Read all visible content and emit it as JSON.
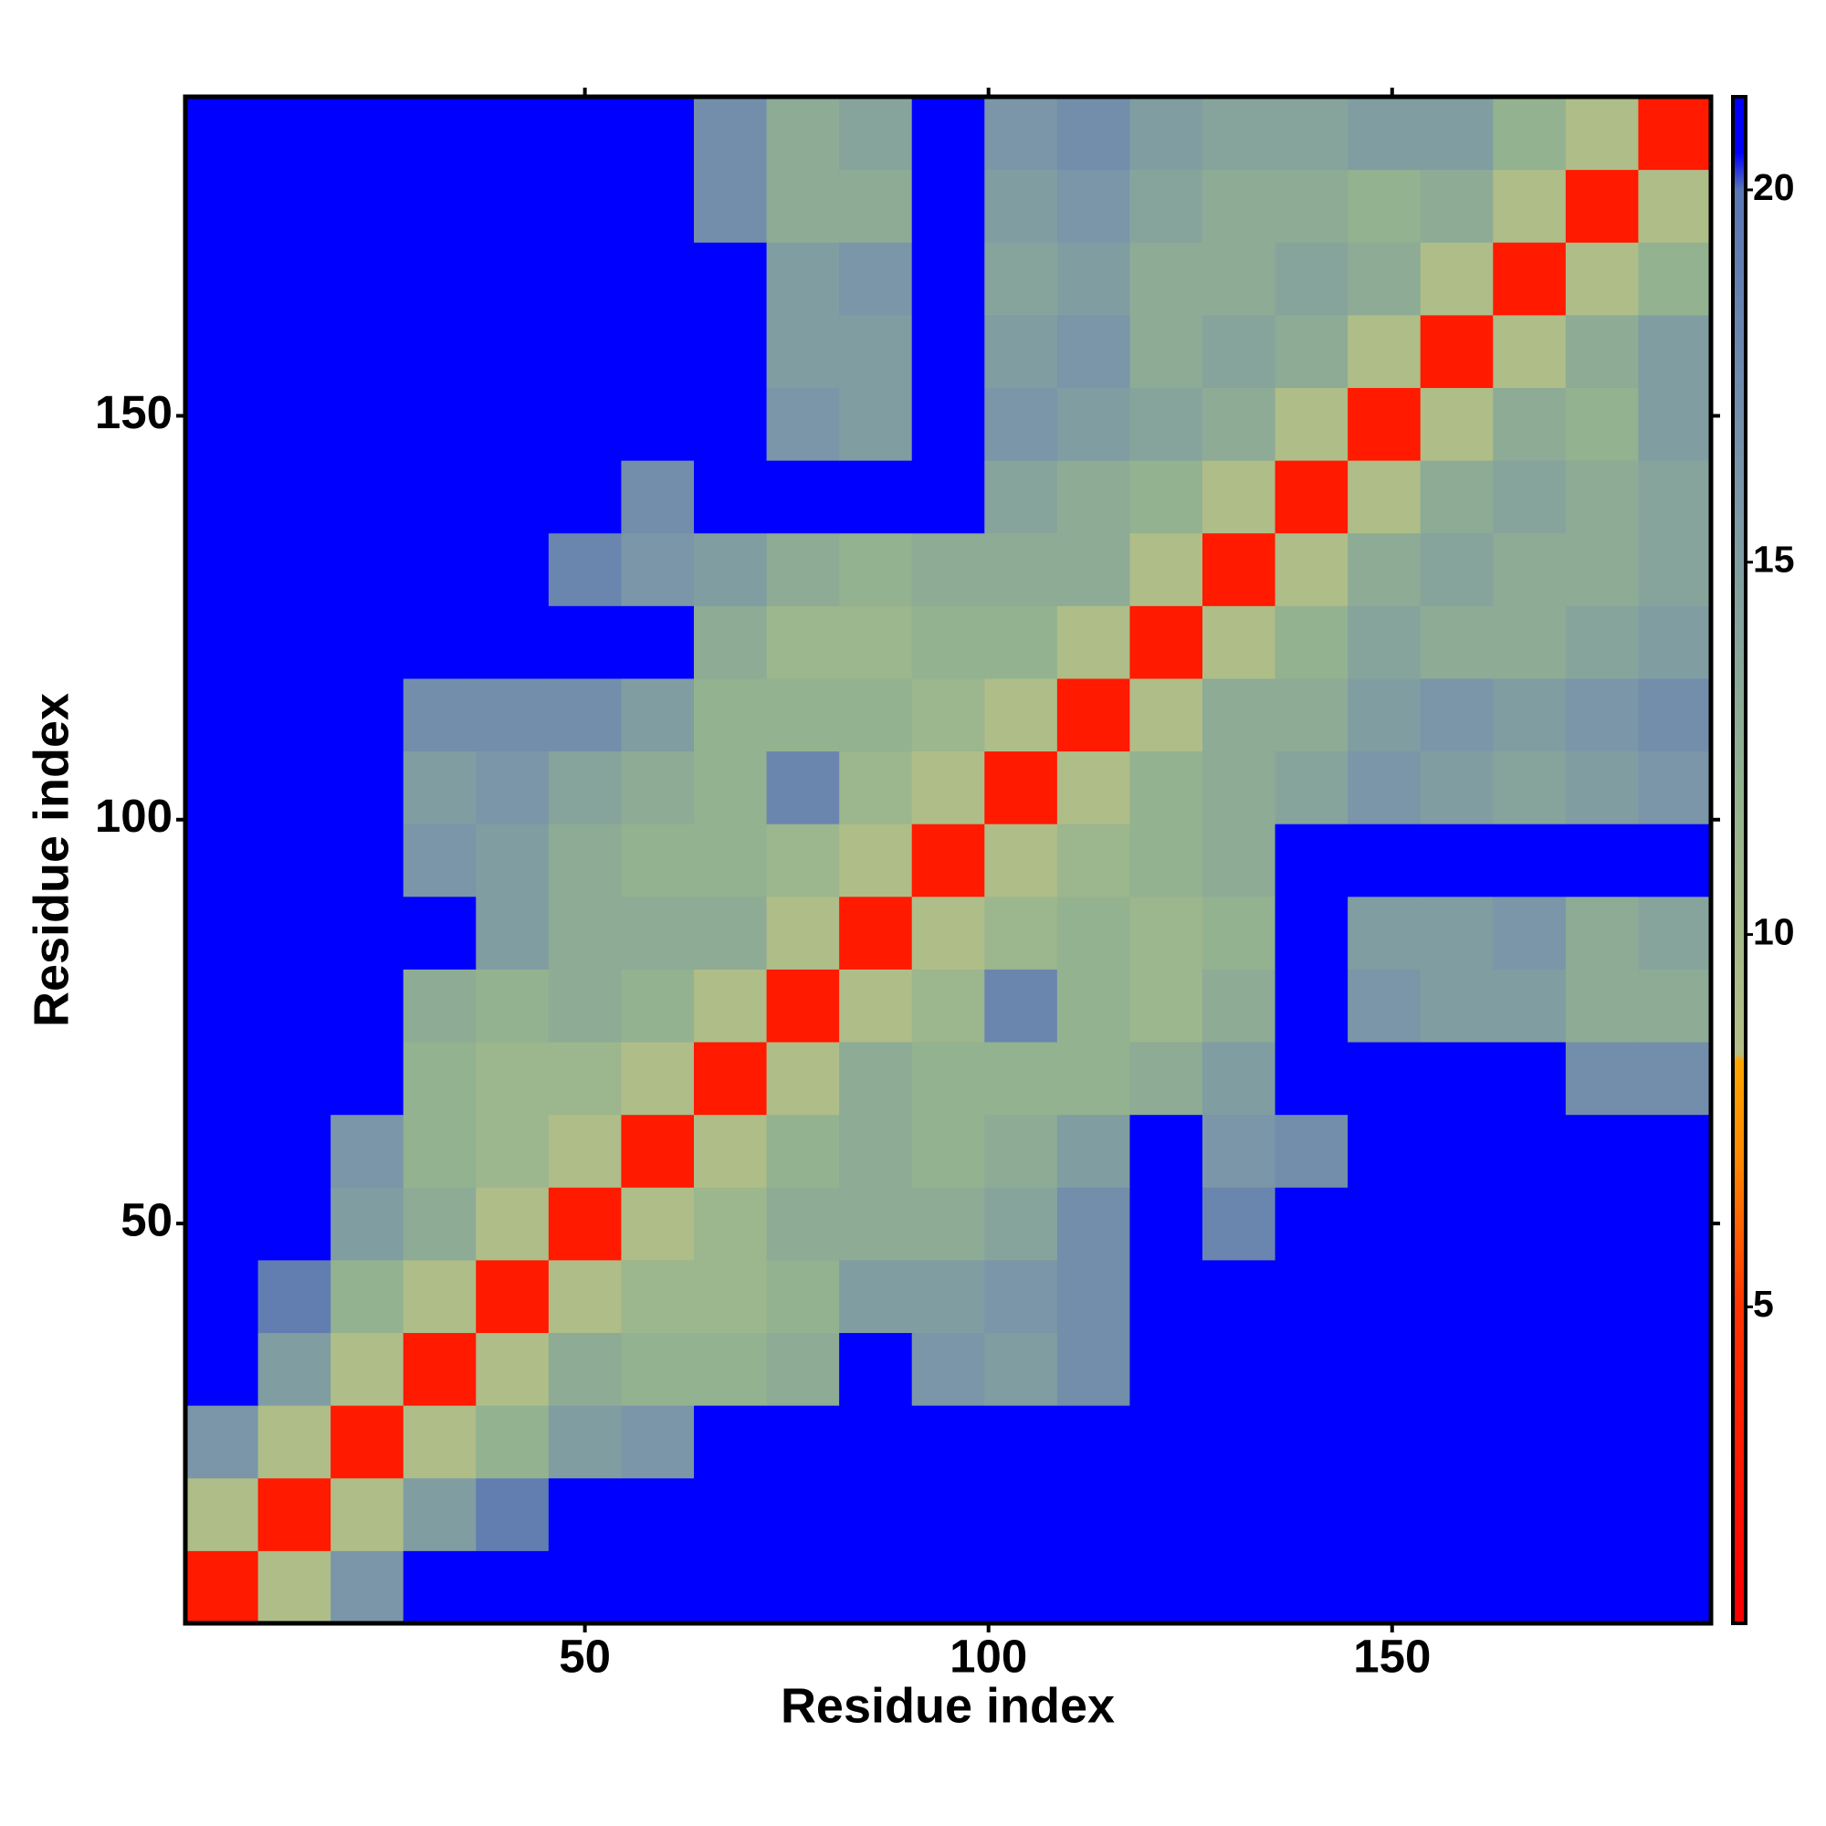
{
  "chart_data": {
    "type": "heatmap",
    "xlabel": "Residue index",
    "ylabel": "Residue index",
    "xlim": [
      0.5,
      189.5
    ],
    "ylim": [
      0.5,
      189.5
    ],
    "xticks": [
      50,
      100,
      150
    ],
    "yticks": [
      50,
      100,
      150
    ],
    "x": [
      5,
      14,
      23,
      32,
      41,
      50,
      59,
      68,
      77,
      86,
      95,
      104,
      113,
      122,
      131,
      140,
      149,
      158,
      167,
      176,
      185
    ],
    "y": [
      5,
      14,
      23,
      32,
      41,
      50,
      59,
      68,
      77,
      86,
      95,
      104,
      113,
      122,
      131,
      140,
      149,
      158,
      167,
      176,
      185
    ],
    "values": [
      [
        3,
        9,
        16,
        21,
        21,
        21,
        21,
        21,
        21,
        21,
        21,
        21,
        21,
        21,
        21,
        21,
        21,
        21,
        21,
        21,
        21
      ],
      [
        9,
        3,
        9,
        15,
        19,
        21,
        21,
        21,
        21,
        21,
        21,
        21,
        21,
        21,
        21,
        21,
        21,
        21,
        21,
        21,
        21
      ],
      [
        16,
        9,
        3,
        9,
        12,
        15,
        16,
        21,
        21,
        21,
        21,
        21,
        21,
        21,
        21,
        21,
        21,
        21,
        21,
        21,
        21
      ],
      [
        21,
        15,
        9,
        3,
        9,
        13,
        12,
        12,
        13,
        21,
        16,
        15,
        17,
        21,
        21,
        21,
        21,
        21,
        21,
        21,
        21
      ],
      [
        21,
        19,
        12,
        9,
        3,
        9,
        11,
        11,
        12,
        15,
        15,
        16,
        17,
        21,
        21,
        21,
        21,
        21,
        21,
        21,
        21
      ],
      [
        21,
        21,
        15,
        13,
        9,
        3,
        9,
        11,
        13,
        13,
        13,
        14,
        17,
        21,
        18,
        21,
        21,
        21,
        21,
        21,
        21
      ],
      [
        21,
        21,
        16,
        12,
        11,
        9,
        3,
        9,
        12,
        13,
        12,
        13,
        15,
        21,
        16,
        17,
        21,
        21,
        21,
        21,
        21
      ],
      [
        21,
        21,
        21,
        12,
        11,
        11,
        9,
        3,
        9,
        13,
        12,
        12,
        12,
        13,
        15,
        21,
        21,
        21,
        21,
        17,
        17
      ],
      [
        21,
        21,
        21,
        13,
        12,
        13,
        12,
        9,
        3,
        9,
        11,
        18,
        12,
        11,
        13,
        21,
        16,
        15,
        15,
        13,
        13
      ],
      [
        21,
        21,
        21,
        21,
        15,
        13,
        13,
        13,
        9,
        3,
        9,
        11,
        12,
        11,
        12,
        21,
        15,
        15,
        16,
        13,
        14
      ],
      [
        21,
        21,
        21,
        16,
        15,
        13,
        12,
        12,
        11,
        9,
        3,
        9,
        11,
        12,
        13,
        21,
        21,
        21,
        21,
        21,
        21
      ],
      [
        21,
        21,
        21,
        15,
        16,
        14,
        13,
        12,
        18,
        11,
        9,
        3,
        9,
        12,
        13,
        14,
        16,
        15,
        14,
        15,
        16
      ],
      [
        21,
        21,
        21,
        17,
        17,
        17,
        15,
        12,
        12,
        12,
        11,
        9,
        3,
        9,
        13,
        13,
        15,
        16,
        15,
        16,
        17
      ],
      [
        21,
        21,
        21,
        21,
        21,
        21,
        21,
        13,
        11,
        11,
        12,
        12,
        9,
        3,
        9,
        12,
        14,
        13,
        13,
        14,
        15
      ],
      [
        21,
        21,
        21,
        21,
        21,
        18,
        16,
        15,
        13,
        12,
        13,
        13,
        13,
        9,
        3,
        9,
        13,
        14,
        13,
        13,
        14
      ],
      [
        21,
        21,
        21,
        21,
        21,
        21,
        17,
        21,
        21,
        21,
        21,
        14,
        13,
        12,
        9,
        3,
        9,
        13,
        14,
        13,
        14
      ],
      [
        21,
        21,
        21,
        21,
        21,
        21,
        21,
        21,
        16,
        15,
        21,
        16,
        15,
        14,
        13,
        9,
        3,
        9,
        13,
        12,
        15
      ],
      [
        21,
        21,
        21,
        21,
        21,
        21,
        21,
        21,
        15,
        15,
        21,
        15,
        16,
        13,
        14,
        13,
        9,
        3,
        9,
        13,
        15
      ],
      [
        21,
        21,
        21,
        21,
        21,
        21,
        21,
        21,
        15,
        16,
        21,
        14,
        15,
        13,
        13,
        14,
        13,
        9,
        3,
        9,
        12
      ],
      [
        21,
        21,
        21,
        21,
        21,
        21,
        21,
        17,
        13,
        13,
        21,
        15,
        16,
        14,
        13,
        13,
        12,
        13,
        9,
        3,
        9
      ],
      [
        21,
        21,
        21,
        21,
        21,
        21,
        21,
        17,
        13,
        14,
        21,
        16,
        17,
        15,
        14,
        14,
        15,
        15,
        12,
        9,
        3
      ]
    ],
    "colorscale": [
      {
        "value": 1,
        "color": "#ff0000"
      },
      {
        "value": 5,
        "color": "#ff3300"
      },
      {
        "value": 7,
        "color": "#ff8800"
      },
      {
        "value": 8.3,
        "color": "#ffa500"
      },
      {
        "value": 8.4,
        "color": "#b4bf86"
      },
      {
        "value": 12,
        "color": "#93b28f"
      },
      {
        "value": 16,
        "color": "#7a96a8"
      },
      {
        "value": 20,
        "color": "#5a76b4"
      },
      {
        "value": 20.5,
        "color": "#0000ff"
      },
      {
        "value": 21,
        "color": "#0000ff"
      }
    ],
    "colorbar": {
      "lim": [
        0.75,
        21.25
      ],
      "ticks": [
        5,
        10,
        15,
        20
      ]
    }
  }
}
